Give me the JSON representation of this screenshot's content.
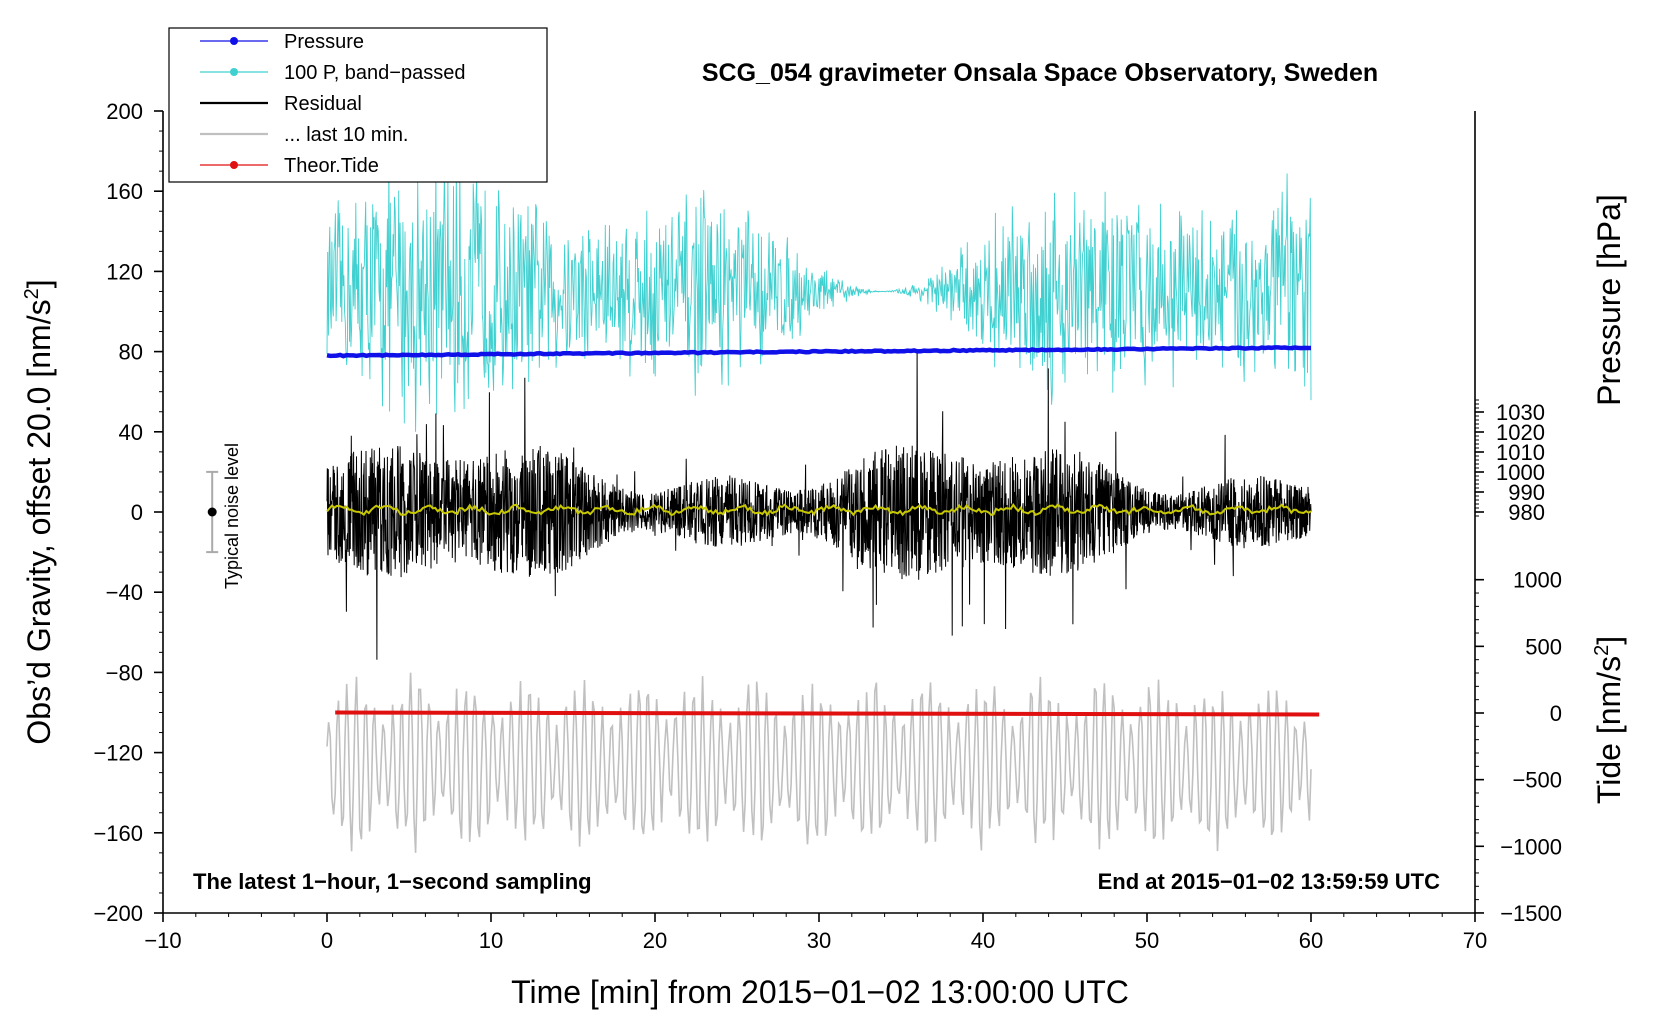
{
  "chart_data": {
    "type": "line",
    "title": "SCG_054 gravimeter Onsala Space Observatory, Sweden",
    "xlabel": "Time [min] from 2015−01−02 13:00:00 UTC",
    "ylabel_left": "Obs’d Gravity, offset 20.0 [nm/s",
    "ylabel_left_sup": "2",
    "ylabel_left_close": "]",
    "ylabel_right_pressure": "Pressure [hPa]",
    "ylabel_right_tide": "Tide [nm/s",
    "ylabel_right_tide_sup": "2",
    "ylabel_right_tide_close": "]",
    "xlim": [
      -10,
      70
    ],
    "ylim": [
      -200,
      200
    ],
    "pressure_axis_range": [
      976,
      1036
    ],
    "tide_axis_range": [
      -1500,
      1000
    ],
    "x_ticks": [
      "−10",
      "0",
      "10",
      "20",
      "30",
      "40",
      "50",
      "60",
      "70"
    ],
    "x_tick_values": [
      -10,
      0,
      10,
      20,
      30,
      40,
      50,
      60,
      70
    ],
    "y_ticks": [
      "200",
      "160",
      "120",
      "80",
      "40",
      "0",
      "−40",
      "−80",
      "−120",
      "−160",
      "−200"
    ],
    "y_tick_values": [
      200,
      160,
      120,
      80,
      40,
      0,
      -40,
      -80,
      -120,
      -160,
      -200
    ],
    "pressure_ticks": [
      "1030",
      "1020",
      "1010",
      "1000",
      "990",
      "980"
    ],
    "pressure_tick_values": [
      1030,
      1020,
      1010,
      1000,
      990,
      980
    ],
    "tide_ticks": [
      "1000",
      "500",
      "0",
      "−500",
      "−1000",
      "−1500"
    ],
    "tide_tick_values": [
      1000,
      500,
      0,
      -500,
      -1000,
      -1500
    ],
    "legend": {
      "position": "top-left",
      "entries": [
        {
          "label": "Pressure",
          "color": "#1010e8",
          "marker": true
        },
        {
          "label": "100 P, band−passed",
          "color": "#40d0d0",
          "marker": true
        },
        {
          "label": "Residual",
          "color": "#000000",
          "marker": false
        },
        {
          "label": "... last 10 min.",
          "color": "#c0c0c0",
          "marker": false
        },
        {
          "label": "Theor.Tide",
          "color": "#e01010",
          "marker": true
        }
      ]
    },
    "annotations": {
      "left": "The latest 1−hour, 1−second sampling",
      "right": "End at 2015−01−02 13:59:59 UTC",
      "noise_label": "Typical noise level"
    },
    "noise_bar": {
      "x": -7,
      "center": 0,
      "low": -20,
      "high": 20
    },
    "series": [
      {
        "name": "Pressure",
        "color": "#1010e8",
        "start_x": 0,
        "end_x": 60,
        "y_start": 78,
        "y_end": 82
      },
      {
        "name": "100 P, band-passed",
        "color": "#40d0d0",
        "start_x": 0,
        "end_x": 60,
        "center": 110,
        "amplitude_min": 10,
        "amplitude_max": 80
      },
      {
        "name": "Residual",
        "color": "#000000",
        "start_x": 0,
        "end_x": 60,
        "center": 0,
        "amplitude_min": -80,
        "amplitude_max": 70
      },
      {
        "name": "Smoothed residual",
        "color": "#c8c800",
        "start_x": 0,
        "end_x": 60,
        "center": 1
      },
      {
        "name": "... last 10 min.",
        "color": "#c0c0c0",
        "start_x": 0,
        "end_x": 60,
        "center": -125,
        "amplitude_min": -180,
        "amplitude_max": -60
      },
      {
        "name": "Theor.Tide",
        "color": "#e01010",
        "start_x": 0.5,
        "end_x": 60.5,
        "y_start": -100,
        "y_end": -101
      }
    ]
  }
}
